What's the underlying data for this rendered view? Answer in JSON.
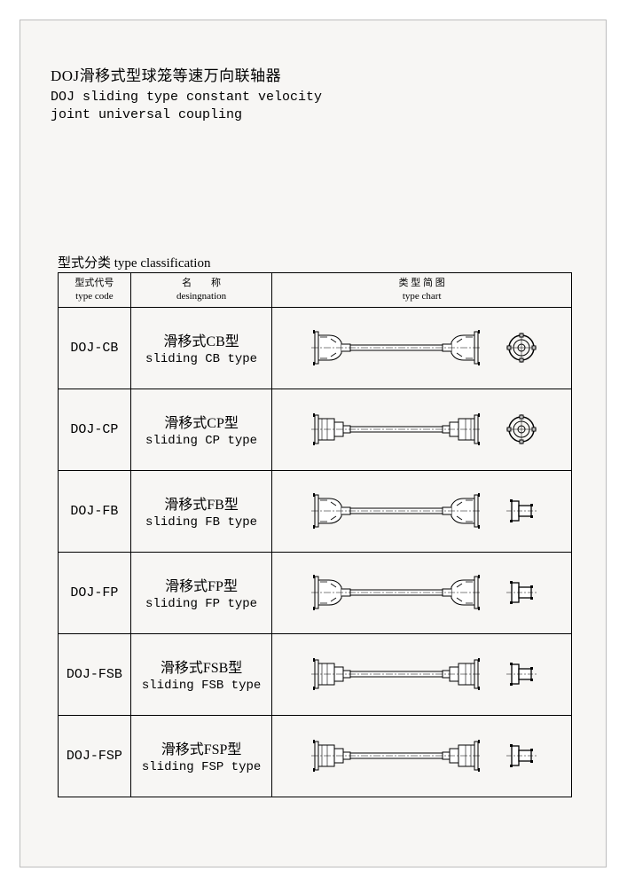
{
  "header": {
    "title_cn": "DOJ滑移式型球笼等速万向联轴器",
    "title_en_line1": "DOJ sliding type constant velocity",
    "title_en_line2": "joint universal coupling"
  },
  "section_title": "型式分类 type classification",
  "table": {
    "headers": {
      "code": {
        "cn": "型式代号",
        "en": "type code"
      },
      "designation": {
        "cn": "名　　称",
        "en": "desingnation"
      },
      "chart": {
        "cn": "类 型 简 图",
        "en": "type chart"
      }
    },
    "rows": [
      {
        "code": "DOJ-CB",
        "cn": "滑移式CB型",
        "en": "sliding CB type",
        "end_style": "circle",
        "joint_style": "bell"
      },
      {
        "code": "DOJ-CP",
        "cn": "滑移式CP型",
        "en": "sliding CP type",
        "end_style": "circle",
        "joint_style": "plate"
      },
      {
        "code": "DOJ-FB",
        "cn": "滑移式FB型",
        "en": "sliding FB type",
        "end_style": "flange",
        "joint_style": "bell"
      },
      {
        "code": "DOJ-FP",
        "cn": "滑移式FP型",
        "en": "sliding FP type",
        "end_style": "flange",
        "joint_style": "bell"
      },
      {
        "code": "DOJ-FSB",
        "cn": "滑移式FSB型",
        "en": "sliding FSB type",
        "end_style": "flange",
        "joint_style": "plate"
      },
      {
        "code": "DOJ-FSP",
        "cn": "滑移式FSP型",
        "en": "sliding FSP type",
        "end_style": "flange",
        "joint_style": "plate"
      }
    ]
  },
  "style": {
    "page_bg": "#f7f6f4",
    "page_border": "#bdbdbd",
    "stroke": "#000000",
    "table_border": "#000000",
    "text_color": "#000000"
  }
}
